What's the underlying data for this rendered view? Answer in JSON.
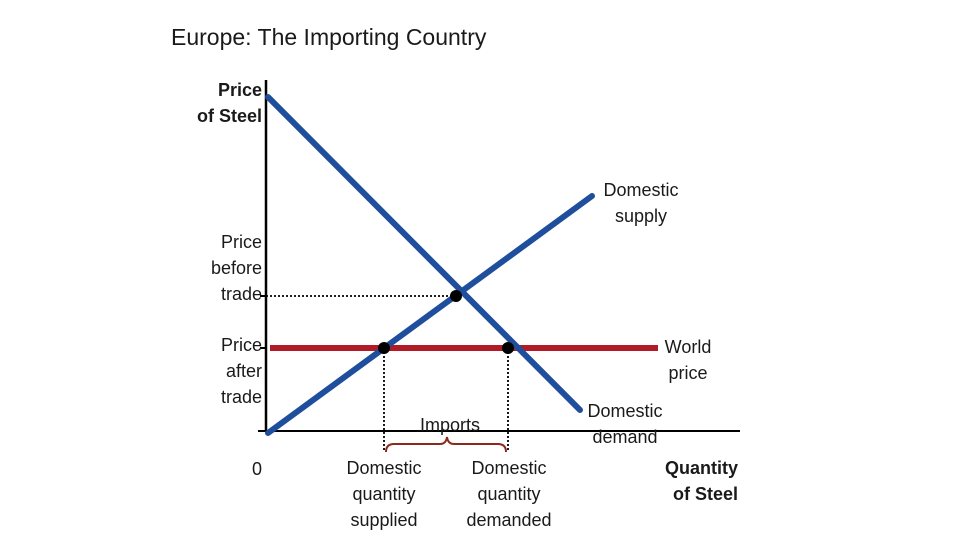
{
  "title": "Europe: The Importing Country",
  "axes": {
    "y_label": [
      "Price",
      "of Steel"
    ],
    "x_label": [
      "Quantity",
      "of Steel"
    ],
    "origin": "0"
  },
  "price_labels": {
    "before_trade": [
      "Price",
      "before",
      "trade"
    ],
    "after_trade": [
      "Price",
      "after",
      "trade"
    ]
  },
  "curves": {
    "supply": [
      "Domestic",
      "supply"
    ],
    "demand": [
      "Domestic",
      "demand"
    ],
    "world_price": [
      "World",
      "price"
    ]
  },
  "imports_label": "Imports",
  "quantity_labels": {
    "supplied": [
      "Domestic",
      "quantity",
      "supplied"
    ],
    "demanded": [
      "Domestic",
      "quantity",
      "demanded"
    ]
  },
  "colors": {
    "curves": "#1f4e9c",
    "world_price": "#b11b26",
    "axis": "#000000",
    "imports_brace": "#8b2a1c"
  }
}
